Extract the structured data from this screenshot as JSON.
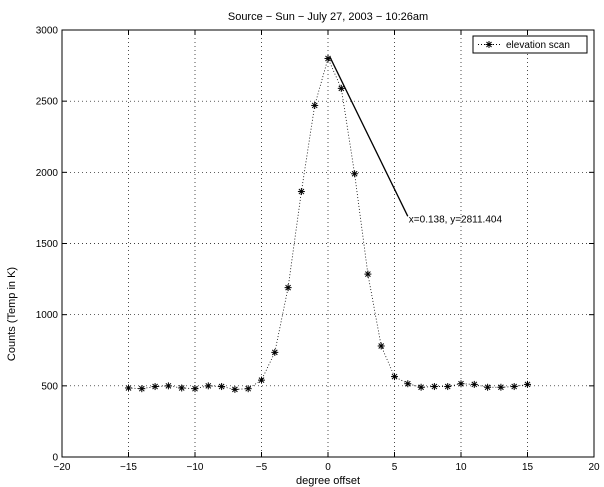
{
  "chart_data": {
    "type": "scatter",
    "title": "Source − Sun − July 27, 2003 − 10:26am",
    "xlabel": "degree offset",
    "ylabel": "Counts (Temp in K)",
    "xlim": [
      -20,
      20
    ],
    "ylim": [
      0,
      3000
    ],
    "xticks": [
      -20,
      -15,
      -10,
      -5,
      0,
      5,
      10,
      15,
      20
    ],
    "yticks": [
      0,
      500,
      1000,
      1500,
      2000,
      2500,
      3000
    ],
    "xtick_labels": [
      "−20",
      "−15",
      "−10",
      "−5",
      "0",
      "5",
      "10",
      "15",
      "20"
    ],
    "ytick_labels": [
      "0",
      "500",
      "1000",
      "1500",
      "2000",
      "2500",
      "3000"
    ],
    "grid": true,
    "legend_position": "top-right",
    "series": [
      {
        "name": "elevation scan",
        "marker": "*",
        "line": "dotted",
        "color": "#000000",
        "x": [
          -15,
          -14,
          -13,
          -12,
          -11,
          -10,
          -9,
          -8,
          -7,
          -6,
          -5,
          -4,
          -3,
          -2,
          -1,
          0,
          1,
          2,
          3,
          4,
          5,
          6,
          7,
          8,
          9,
          10,
          11,
          12,
          13,
          14,
          15
        ],
        "y": [
          485,
          480,
          495,
          500,
          485,
          480,
          500,
          495,
          475,
          480,
          540,
          735,
          1190,
          1865,
          2470,
          2800,
          2590,
          1990,
          1285,
          780,
          565,
          515,
          490,
          495,
          495,
          515,
          510,
          490,
          490,
          495,
          510
        ]
      }
    ],
    "annotation": {
      "text": "x=0.138, y=2811.404",
      "x": 0.138,
      "y": 2811.404,
      "label_x": 6,
      "label_y": 1670
    }
  }
}
